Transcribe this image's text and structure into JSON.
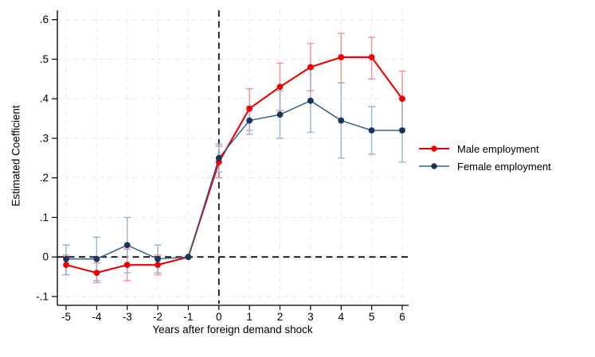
{
  "figure": {
    "background_color": "#ffffff"
  },
  "chart_data": {
    "type": "line",
    "title": "",
    "xlabel": "Years after foreign demand shock",
    "ylabel": "Estimated Coefficient",
    "x": [
      -5,
      -4,
      -3,
      -2,
      -1,
      0,
      1,
      2,
      3,
      4,
      5,
      6
    ],
    "xtick_labels": [
      "-5",
      "-4",
      "-3",
      "-2",
      "-1",
      "0",
      "1",
      "2",
      "3",
      "4",
      "5",
      "6"
    ],
    "yticks": [
      -0.1,
      0,
      0.1,
      0.2,
      0.3,
      0.4,
      0.5,
      0.6
    ],
    "ytick_labels": [
      "-.1",
      "0",
      ".1",
      ".2",
      ".3",
      ".4",
      ".5",
      ".6"
    ],
    "ylim": [
      -0.1,
      0.6
    ],
    "grid": "horizontal and vertical light gray dashed gridlines at every tick",
    "reference_lines": {
      "horizontal_y": 0,
      "vertical_x": 0,
      "style": "black dashed"
    },
    "legend_position": "right of plot area, vertically centered",
    "error_bars": true,
    "series": [
      {
        "name": "Male employment",
        "color": "#f20000",
        "line_color": "#f20000",
        "ci_color": "#f58a8a",
        "values": [
          -0.02,
          -0.04,
          -0.02,
          -0.02,
          0,
          0.24,
          0.375,
          0.43,
          0.48,
          0.505,
          0.505,
          0.4
        ],
        "ci_low": [
          -0.045,
          -0.065,
          -0.06,
          -0.045,
          null,
          0.2,
          0.32,
          0.37,
          0.42,
          0.44,
          0.45,
          0.325
        ],
        "ci_high": [
          0.005,
          -0.015,
          0.02,
          0.005,
          null,
          0.28,
          0.425,
          0.49,
          0.54,
          0.565,
          0.555,
          0.47
        ]
      },
      {
        "name": "Female employment",
        "color": "#16365c",
        "line_color": "#34618f",
        "ci_color": "#93afcd",
        "values": [
          -0.005,
          -0.005,
          0.03,
          -0.005,
          0,
          0.25,
          0.345,
          0.36,
          0.395,
          0.345,
          0.32,
          0.32
        ],
        "ci_low": [
          -0.045,
          -0.06,
          -0.04,
          -0.04,
          null,
          0.215,
          0.31,
          0.3,
          0.315,
          0.25,
          0.26,
          0.24
        ],
        "ci_high": [
          0.03,
          0.05,
          0.1,
          0.03,
          null,
          0.285,
          0.38,
          0.42,
          0.475,
          0.44,
          0.38,
          0.4
        ]
      }
    ]
  }
}
